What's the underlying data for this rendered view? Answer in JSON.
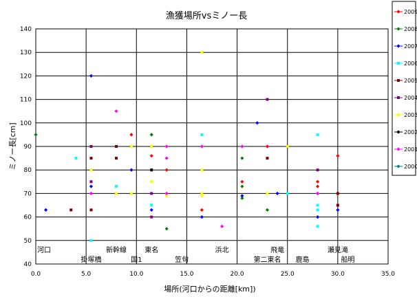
{
  "chart_data": {
    "type": "scatter",
    "title": "漁獲場所vsミノー長",
    "xlabel": "場所(河口からの距離[km])",
    "ylabel": "ミノー長[cm]",
    "xlim": [
      0,
      35
    ],
    "ylim": [
      40,
      140
    ],
    "x_ticks": [
      "0.0",
      "5.0",
      "10.0",
      "15.0",
      "20.0",
      "25.0",
      "30.0",
      "35.0"
    ],
    "y_ticks": [
      "40",
      "50",
      "60",
      "70",
      "80",
      "90",
      "100",
      "110",
      "120",
      "130",
      "140"
    ],
    "grid": true,
    "legend_position": "right",
    "landmarks": [
      {
        "x": 0.0,
        "label": "河口"
      },
      {
        "x": 5.5,
        "label": "掛塚橋"
      },
      {
        "x": 8.0,
        "label": "新幹線"
      },
      {
        "x": 10.0,
        "label": "国1"
      },
      {
        "x": 11.5,
        "label": "東名"
      },
      {
        "x": 14.5,
        "label": "笠句"
      },
      {
        "x": 18.5,
        "label": "浜北"
      },
      {
        "x": 23.0,
        "label": "第二東名"
      },
      {
        "x": 24.0,
        "label": "飛竜"
      },
      {
        "x": 26.5,
        "label": "鹿島"
      },
      {
        "x": 30.0,
        "label": "瀬見滝"
      },
      {
        "x": 31.0,
        "label": "船明"
      }
    ],
    "series": [
      {
        "name": "2009",
        "color": "#ff0000",
        "marker": "diamond",
        "points": [
          [
            9.5,
            95
          ],
          [
            11.5,
            86
          ],
          [
            13.0,
            80
          ],
          [
            16.5,
            63
          ],
          [
            20.5,
            75
          ],
          [
            23.0,
            90
          ],
          [
            28.0,
            75
          ],
          [
            28.0,
            73
          ],
          [
            30.0,
            86
          ]
        ]
      },
      {
        "name": "2008",
        "color": "#008000",
        "marker": "diamond",
        "points": [
          [
            0.0,
            95
          ],
          [
            11.5,
            95
          ],
          [
            13.0,
            55
          ],
          [
            20.5,
            85
          ],
          [
            20.5,
            73
          ],
          [
            20.5,
            68
          ],
          [
            23.0,
            63
          ],
          [
            28.0,
            70
          ]
        ]
      },
      {
        "name": "2007",
        "color": "#0000ff",
        "marker": "diamond",
        "points": [
          [
            1.0,
            63
          ],
          [
            5.5,
            120
          ],
          [
            5.5,
            73
          ],
          [
            9.5,
            80
          ],
          [
            11.5,
            63
          ],
          [
            16.5,
            60
          ],
          [
            20.5,
            69
          ],
          [
            22.0,
            100
          ],
          [
            24.0,
            70
          ],
          [
            28.0,
            60
          ],
          [
            30.0,
            63
          ]
        ]
      },
      {
        "name": "2006",
        "color": "#00ffff",
        "marker": "square",
        "points": [
          [
            4.0,
            85
          ],
          [
            5.5,
            50
          ],
          [
            8.0,
            73
          ],
          [
            11.5,
            65
          ],
          [
            16.5,
            95
          ],
          [
            25.0,
            70
          ],
          [
            28.0,
            95
          ],
          [
            28.0,
            65
          ],
          [
            28.0,
            63
          ],
          [
            28.0,
            56
          ]
        ]
      },
      {
        "name": "2005",
        "color": "#800000",
        "marker": "square",
        "points": [
          [
            3.5,
            63
          ],
          [
            5.5,
            85
          ],
          [
            5.5,
            63
          ],
          [
            8.0,
            90
          ],
          [
            8.0,
            85
          ],
          [
            11.5,
            80
          ],
          [
            23.0,
            85
          ],
          [
            30.0,
            70
          ],
          [
            30.0,
            65
          ]
        ]
      },
      {
        "name": "2004",
        "color": "#800080",
        "marker": "square",
        "points": [
          [
            5.5,
            90
          ],
          [
            5.5,
            75
          ],
          [
            11.5,
            70
          ],
          [
            11.5,
            60
          ],
          [
            23.0,
            110
          ],
          [
            28.0,
            80
          ]
        ]
      },
      {
        "name": "2003",
        "color": "#ffff00",
        "marker": "square",
        "points": [
          [
            5.5,
            80
          ],
          [
            8.0,
            70
          ],
          [
            9.5,
            90
          ],
          [
            9.5,
            70
          ],
          [
            11.5,
            90
          ],
          [
            11.5,
            75
          ],
          [
            13.0,
            69
          ],
          [
            16.5,
            130
          ],
          [
            16.5,
            80
          ],
          [
            16.5,
            70
          ],
          [
            16.5,
            69
          ],
          [
            23.0,
            70
          ],
          [
            25.0,
            90
          ]
        ]
      },
      {
        "name": "2002",
        "color": "#000000",
        "marker": "diamond",
        "points": [
          [
            11.5,
            80
          ]
        ]
      },
      {
        "name": "2001",
        "color": "#ff00ff",
        "marker": "diamond",
        "points": [
          [
            5.5,
            70
          ],
          [
            8.0,
            105
          ],
          [
            13.0,
            90
          ],
          [
            13.0,
            85
          ],
          [
            13.0,
            70
          ],
          [
            16.5,
            90
          ],
          [
            18.5,
            56
          ],
          [
            20.5,
            90
          ],
          [
            28.0,
            70
          ]
        ]
      },
      {
        "name": "2000",
        "color": "#008080",
        "marker": "diamond",
        "points": []
      }
    ]
  }
}
